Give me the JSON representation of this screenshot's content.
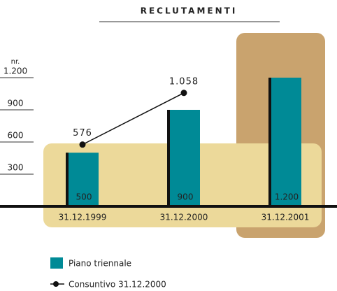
{
  "chart_data": {
    "type": "bar",
    "title": "RECLUTAMENTI",
    "y_label": "nr.",
    "categories": [
      "31.12.1999",
      "31.12.2000",
      "31.12.2001"
    ],
    "series": [
      {
        "name": "Piano triennale",
        "color": "#008a96",
        "values": [
          500,
          900,
          1200
        ],
        "value_labels": [
          "500",
          "900",
          "1.200"
        ]
      },
      {
        "name": "Consuntivo 31.12.2000",
        "type": "line",
        "color": "#111111",
        "values": [
          576,
          1058,
          null
        ],
        "value_labels": [
          "576",
          "1.058",
          null
        ]
      }
    ],
    "ylim": [
      0,
      1200
    ],
    "yticks": [
      300,
      600,
      900,
      {
        "value": 1200,
        "label": "1.200"
      }
    ],
    "grid": true
  }
}
